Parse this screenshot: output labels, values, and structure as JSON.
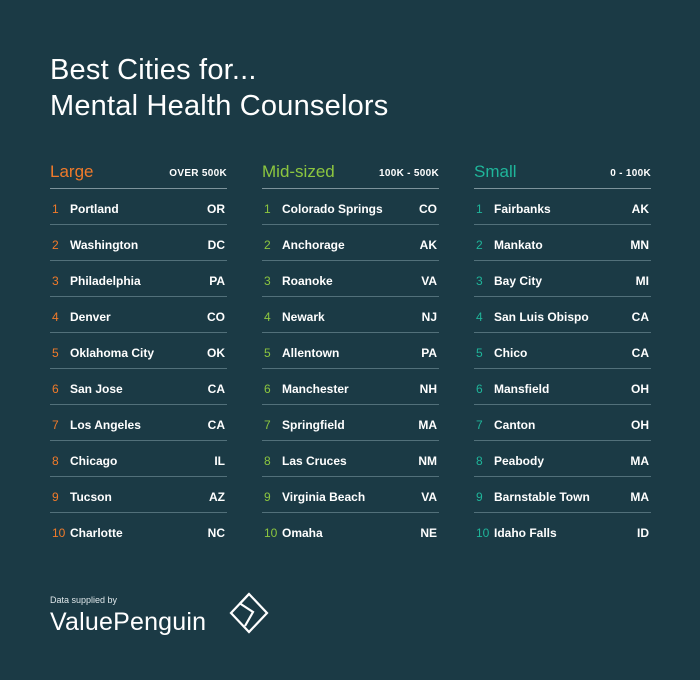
{
  "title": {
    "line1": "Best Cities for...",
    "line2": "Mental Health Counselors"
  },
  "colors": {
    "background": "#1b3a45",
    "large": "#f07a2a",
    "mid": "#8cc63f",
    "small": "#1fb59a"
  },
  "columns": {
    "large": {
      "title": "Large",
      "range": "OVER 500K",
      "rows": [
        {
          "rank": "1",
          "city": "Portland",
          "state": "OR"
        },
        {
          "rank": "2",
          "city": "Washington",
          "state": "DC"
        },
        {
          "rank": "3",
          "city": "Philadelphia",
          "state": "PA"
        },
        {
          "rank": "4",
          "city": "Denver",
          "state": "CO"
        },
        {
          "rank": "5",
          "city": "Oklahoma City",
          "state": "OK"
        },
        {
          "rank": "6",
          "city": "San Jose",
          "state": "CA"
        },
        {
          "rank": "7",
          "city": "Los Angeles",
          "state": "CA"
        },
        {
          "rank": "8",
          "city": "Chicago",
          "state": "IL"
        },
        {
          "rank": "9",
          "city": "Tucson",
          "state": "AZ"
        },
        {
          "rank": "10",
          "city": "Charlotte",
          "state": "NC"
        }
      ]
    },
    "mid": {
      "title": "Mid-sized",
      "range": "100K - 500K",
      "rows": [
        {
          "rank": "1",
          "city": "Colorado Springs",
          "state": "CO"
        },
        {
          "rank": "2",
          "city": "Anchorage",
          "state": "AK"
        },
        {
          "rank": "3",
          "city": "Roanoke",
          "state": "VA"
        },
        {
          "rank": "4",
          "city": "Newark",
          "state": "NJ"
        },
        {
          "rank": "5",
          "city": "Allentown",
          "state": "PA"
        },
        {
          "rank": "6",
          "city": "Manchester",
          "state": "NH"
        },
        {
          "rank": "7",
          "city": "Springfield",
          "state": "MA"
        },
        {
          "rank": "8",
          "city": "Las Cruces",
          "state": "NM"
        },
        {
          "rank": "9",
          "city": "Virginia Beach",
          "state": "VA"
        },
        {
          "rank": "10",
          "city": "Omaha",
          "state": "NE"
        }
      ]
    },
    "small": {
      "title": "Small",
      "range": "0 - 100K",
      "rows": [
        {
          "rank": "1",
          "city": "Fairbanks",
          "state": "AK"
        },
        {
          "rank": "2",
          "city": "Mankato",
          "state": "MN"
        },
        {
          "rank": "3",
          "city": "Bay City",
          "state": "MI"
        },
        {
          "rank": "4",
          "city": "San Luis Obispo",
          "state": "CA"
        },
        {
          "rank": "5",
          "city": "Chico",
          "state": "CA"
        },
        {
          "rank": "6",
          "city": "Mansfield",
          "state": "OH"
        },
        {
          "rank": "7",
          "city": "Canton",
          "state": "OH"
        },
        {
          "rank": "8",
          "city": "Peabody",
          "state": "MA"
        },
        {
          "rank": "9",
          "city": "Barnstable Town",
          "state": "MA"
        },
        {
          "rank": "10",
          "city": "Idaho Falls",
          "state": "ID"
        }
      ]
    }
  },
  "footer": {
    "supplied_by": "Data supplied by",
    "brand": "ValuePenguin",
    "logo_icon": "valuepenguin-logo-icon"
  }
}
